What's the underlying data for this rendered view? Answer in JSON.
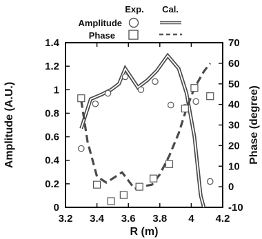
{
  "chart_data": {
    "type": "line",
    "title": "",
    "xlabel": "R (m)",
    "ylabel_left": "Amplitude (A.U.)",
    "ylabel_right": "Phase (degree)",
    "xlim": [
      3.2,
      4.2
    ],
    "ylim_left": [
      0,
      1.4
    ],
    "ylim_right": [
      -10,
      70
    ],
    "grid": false,
    "legend_position": "top-right",
    "x_ticks": [
      "3.2",
      "3.4",
      "3.6",
      "3.8",
      "4",
      "4.2"
    ],
    "x_tick_values": [
      3.2,
      3.4,
      3.6,
      3.8,
      4.0,
      4.2
    ],
    "y_left_ticks": [
      "0",
      "0.2",
      "0.4",
      "0.6",
      "0.8",
      "1",
      "1.2",
      "1.4"
    ],
    "y_left_tick_values": [
      0,
      0.2,
      0.4,
      0.6,
      0.8,
      1.0,
      1.2,
      1.4
    ],
    "y_right_ticks": [
      "-10",
      "0",
      "10",
      "20",
      "30",
      "40",
      "50",
      "60",
      "70"
    ],
    "y_right_tick_values": [
      -10,
      0,
      10,
      20,
      30,
      40,
      50,
      60,
      70
    ],
    "legend": {
      "header_exp": "Exp.",
      "header_cal": "Cal.",
      "items": [
        {
          "label": "Amplitude",
          "marker": "circle",
          "line_style": "double"
        },
        {
          "label": "Phase",
          "marker": "square",
          "line_style": "dashed"
        }
      ]
    },
    "series": [
      {
        "name": "Amplitude",
        "kind": "calculated",
        "axis": "left",
        "line_style": "double",
        "x": [
          3.3,
          3.36,
          3.43,
          3.49,
          3.54,
          3.58,
          3.61,
          3.66,
          3.72,
          3.78,
          3.85,
          3.92,
          3.97,
          4.02,
          4.06,
          4.1
        ],
        "y": [
          0.67,
          0.92,
          0.96,
          1.0,
          1.05,
          1.18,
          1.12,
          1.02,
          1.08,
          1.16,
          1.29,
          1.18,
          0.97,
          0.6,
          0.1,
          -0.1
        ]
      },
      {
        "name": "Phase",
        "kind": "calculated",
        "axis": "right",
        "line_style": "dashed",
        "x": [
          3.3,
          3.34,
          3.4,
          3.46,
          3.5,
          3.56,
          3.6,
          3.64,
          3.68,
          3.75,
          3.8,
          3.86,
          3.92,
          3.97,
          4.02,
          4.08,
          4.12
        ],
        "y": [
          42.0,
          22.0,
          5.0,
          2.0,
          4.0,
          7.0,
          3.0,
          -1.0,
          0.0,
          1.0,
          6.0,
          15.0,
          26.0,
          38.0,
          48.0,
          56.0,
          60.0
        ]
      },
      {
        "name": "Amplitude",
        "kind": "experimental",
        "axis": "left",
        "marker": "circle",
        "x": [
          3.3,
          3.39,
          3.47,
          3.58,
          3.68,
          3.77,
          3.87,
          3.96,
          4.03,
          4.12
        ],
        "y": [
          0.5,
          0.88,
          0.97,
          1.11,
          1.0,
          1.07,
          0.87,
          0.85,
          0.9,
          0.22
        ]
      },
      {
        "name": "Phase",
        "kind": "experimental",
        "axis": "right",
        "marker": "square",
        "x": [
          3.3,
          3.4,
          3.49,
          3.57,
          3.67,
          3.76,
          3.86,
          3.96,
          4.02,
          4.12
        ],
        "y": [
          43.0,
          1.0,
          -7.0,
          -4.0,
          0.0,
          4.0,
          11.0,
          38.0,
          48.0,
          44.0
        ]
      }
    ]
  }
}
